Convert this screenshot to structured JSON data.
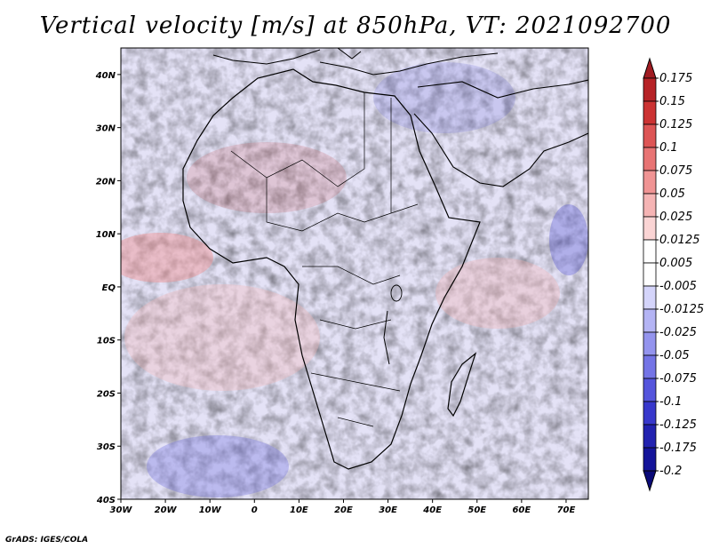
{
  "chart_data": {
    "type": "heatmap",
    "title": "Vertical velocity [m/s] at 850hPa, VT: 2021092700",
    "variable": "Vertical velocity",
    "units": "m/s",
    "level": "850hPa",
    "valid_time": "2021092700",
    "x_ticks": [
      "30W",
      "20W",
      "10W",
      "0",
      "10E",
      "20E",
      "30E",
      "40E",
      "50E",
      "60E",
      "70E"
    ],
    "x_tick_values": [
      -30,
      -20,
      -10,
      0,
      10,
      20,
      30,
      40,
      50,
      60,
      70
    ],
    "y_ticks": [
      "40N",
      "30N",
      "20N",
      "10N",
      "EQ",
      "10S",
      "20S",
      "30S",
      "40S"
    ],
    "y_tick_values": [
      40,
      30,
      20,
      10,
      0,
      -10,
      -20,
      -30,
      -40
    ],
    "xlim": [
      -30,
      75
    ],
    "ylim": [
      -40,
      45
    ],
    "colorbar": {
      "labels": [
        "0.175",
        "0.15",
        "0.125",
        "0.1",
        "0.075",
        "0.05",
        "0.025",
        "0.0125",
        "0.005",
        "-0.005",
        "-0.0125",
        "-0.025",
        "-0.05",
        "-0.075",
        "-0.1",
        "-0.125",
        "-0.175",
        "-0.2"
      ],
      "colors": [
        "#a01c22",
        "#b62226",
        "#cc3333",
        "#dd5555",
        "#e87474",
        "#f09494",
        "#f5b4b4",
        "#fad4d4",
        "#ffffff",
        "#ffffff",
        "#d4d4fa",
        "#b4b4f4",
        "#9494ee",
        "#7474e6",
        "#5555dc",
        "#3838cc",
        "#2222b0",
        "#14149a",
        "#0a0a78"
      ]
    }
  },
  "credit": "GrADS: IGES/COLA"
}
